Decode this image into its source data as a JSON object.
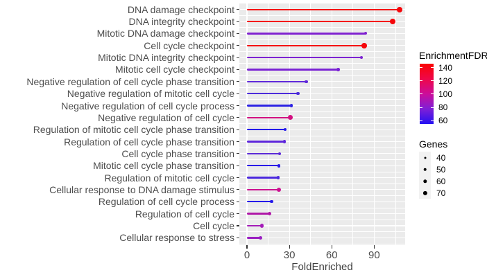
{
  "chart_data": {
    "type": "lollipop",
    "title": "",
    "xlabel": "FoldEnriched",
    "x_ticks": [
      0,
      30,
      60,
      90
    ],
    "x_minor_ticks": [
      15,
      45,
      75,
      105
    ],
    "xlim": [
      -5,
      112
    ],
    "categories": [
      "DNA damage checkpoint",
      "DNA integrity checkpoint",
      "Mitotic DNA damage checkpoint",
      "Cell cycle checkpoint",
      "Mitotic DNA integrity checkpoint",
      "Mitotic cell cycle checkpoint",
      "Negative regulation of cell cycle phase transition",
      "Negative regulation of mitotic cell cycle",
      "Negative regulation of cell cycle process",
      "Negative regulation of cell cycle",
      "Regulation of mitotic cell cycle phase transition",
      "Regulation of cell cycle phase transition",
      "Cell cycle phase transition",
      "Mitotic cell cycle phase transition",
      "Regulation of mitotic cell cycle",
      "Cellular response to DNA damage stimulus",
      "Regulation of cell cycle process",
      "Regulation of cell cycle",
      "Cell cycle",
      "Cellular response to stress"
    ],
    "fold_enriched": [
      108,
      103,
      84,
      83,
      81,
      64.5,
      42,
      36,
      31.5,
      30.5,
      27,
      26.5,
      23,
      22.5,
      22,
      22.5,
      17.5,
      16,
      10.5,
      9.5
    ],
    "enrichment_fdr_est": [
      140,
      140,
      88,
      140,
      87,
      86,
      78,
      74,
      65,
      108,
      62,
      77,
      76,
      64,
      73,
      107,
      62,
      100,
      97,
      95
    ],
    "genes_est": [
      80,
      80,
      45,
      75,
      42,
      48,
      48,
      48,
      48,
      65,
      47,
      48,
      45,
      47,
      47,
      62,
      46,
      55,
      52,
      52
    ],
    "point_colors": [
      "#F5060A",
      "#F5060A",
      "#8021D0",
      "#F5060A",
      "#7D24D2",
      "#7A22D4",
      "#5F28DA",
      "#4C2BDB",
      "#2C22E4",
      "#D31181",
      "#2419EA",
      "#5E26DC",
      "#5C2AD8",
      "#2A1AE8",
      "#4B28DE",
      "#CC1090",
      "#2519EA",
      "#B018A8",
      "#A41BB8",
      "#9A1FC2"
    ],
    "point_radius_px": [
      4.1,
      4.1,
      2.0,
      3.8,
      1.9,
      2.3,
      2.3,
      2.3,
      2.3,
      3.4,
      2.2,
      2.3,
      2.1,
      2.3,
      2.3,
      3.3,
      2.2,
      2.8,
      2.6,
      2.6
    ],
    "legend_color": {
      "title": "EnrichmentFDR",
      "ticks": [
        140,
        120,
        100,
        80,
        60
      ],
      "top_value": 146,
      "bottom_value": 55,
      "gradient_stops": [
        "#FA0305",
        "#EF0748",
        "#CC0D9A",
        "#7F1FD6",
        "#2410F2"
      ]
    },
    "legend_size": {
      "title": "Genes",
      "entries": [
        {
          "label": "40",
          "r": 1.5
        },
        {
          "label": "50",
          "r": 2.3
        },
        {
          "label": "60",
          "r": 2.7
        },
        {
          "label": "70",
          "r": 3.1
        }
      ]
    },
    "colors": {
      "panel_bg": "#EBEBEB",
      "grid": "#FFFFFF",
      "axis_text": "#4D4D4D",
      "axis_title": "#404040",
      "tick_mark": "#333333",
      "legend_key_bg": "#F2F2F2",
      "legend_text": "#000000"
    }
  }
}
